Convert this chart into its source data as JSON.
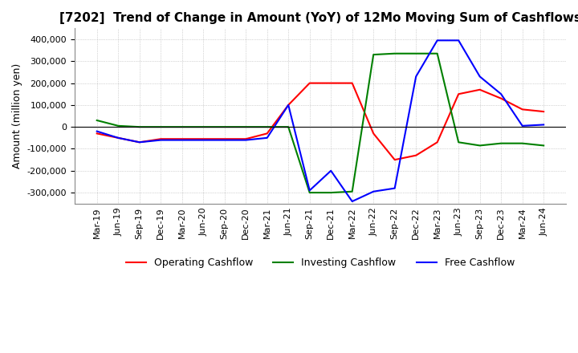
{
  "title": "[7202]  Trend of Change in Amount (YoY) of 12Mo Moving Sum of Cashflows",
  "ylabel": "Amount (million yen)",
  "ylim": [
    -350000,
    450000
  ],
  "yticks": [
    -300000,
    -200000,
    -100000,
    0,
    100000,
    200000,
    300000,
    400000
  ],
  "x_labels": [
    "Mar-19",
    "Jun-19",
    "Sep-19",
    "Dec-19",
    "Mar-20",
    "Jun-20",
    "Sep-20",
    "Dec-20",
    "Mar-21",
    "Jun-21",
    "Sep-21",
    "Dec-21",
    "Mar-22",
    "Jun-22",
    "Sep-22",
    "Dec-22",
    "Mar-23",
    "Jun-23",
    "Sep-23",
    "Dec-23",
    "Mar-24",
    "Jun-24"
  ],
  "operating": [
    -30000,
    -50000,
    -70000,
    -55000,
    -55000,
    -55000,
    -55000,
    -55000,
    -30000,
    100000,
    200000,
    200000,
    200000,
    -30000,
    -150000,
    -130000,
    -70000,
    150000,
    170000,
    130000,
    80000,
    70000
  ],
  "investing": [
    30000,
    5000,
    0,
    0,
    0,
    0,
    0,
    0,
    0,
    0,
    -300000,
    -300000,
    -295000,
    330000,
    335000,
    335000,
    335000,
    -70000,
    -85000,
    -75000,
    -75000,
    -85000
  ],
  "free": [
    -20000,
    -50000,
    -70000,
    -60000,
    -60000,
    -60000,
    -60000,
    -60000,
    -50000,
    100000,
    -290000,
    -200000,
    -340000,
    -295000,
    -280000,
    230000,
    395000,
    395000,
    230000,
    150000,
    5000,
    10000
  ],
  "line_colors": {
    "operating": "#ff0000",
    "investing": "#008000",
    "free": "#0000ff"
  },
  "legend_labels": {
    "operating": "Operating Cashflow",
    "investing": "Investing Cashflow",
    "free": "Free Cashflow"
  },
  "background_color": "#ffffff",
  "grid_color": "#b0b0b0",
  "title_fontsize": 11,
  "label_fontsize": 9,
  "tick_fontsize": 8
}
